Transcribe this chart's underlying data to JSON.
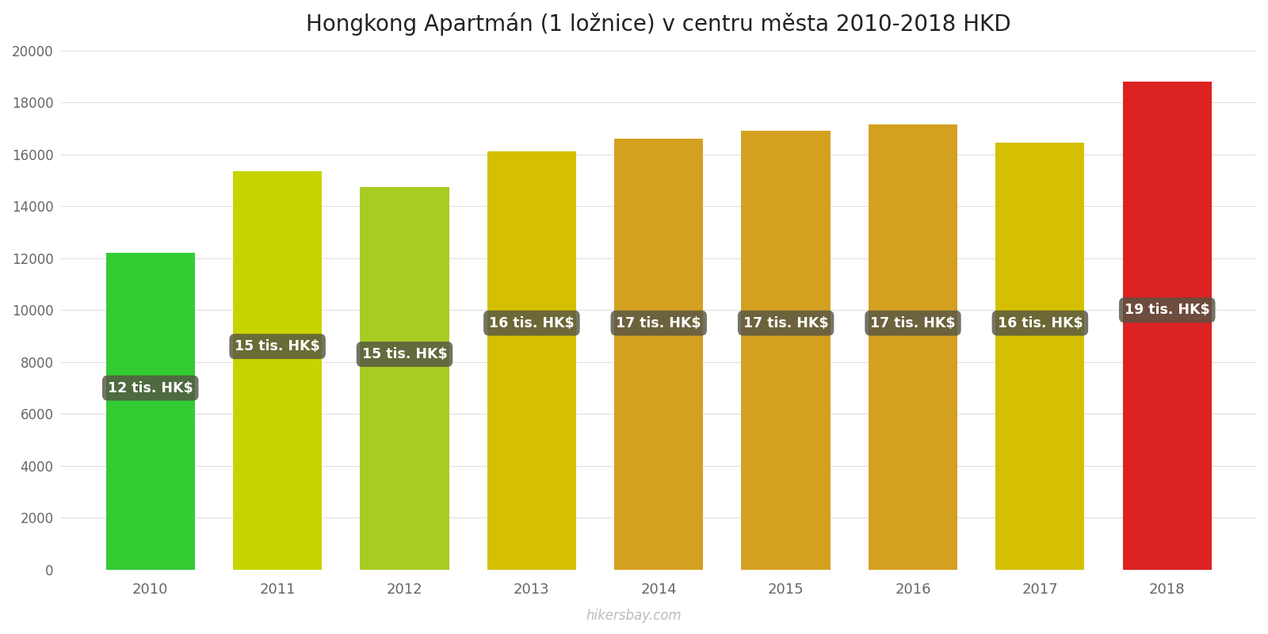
{
  "title": "Hongkong Apartmán (1 ložnice) v centru města 2010-2018 HKD",
  "years": [
    2010,
    2011,
    2012,
    2013,
    2014,
    2015,
    2016,
    2017,
    2018
  ],
  "values": [
    12200,
    15350,
    14750,
    16100,
    16600,
    16900,
    17150,
    16450,
    18800
  ],
  "bar_colors_left": [
    "#44dd44",
    "#ccdd33",
    "#aace33",
    "#ddcc33",
    "#ddaa22",
    "#ddaa22",
    "#ddaa22",
    "#ddcc33",
    "#ee3333"
  ],
  "bar_colors_right": [
    "#22bb22",
    "#aaaa00",
    "#88aa00",
    "#ccaa00",
    "#cc8800",
    "#cc8800",
    "#cc8800",
    "#ccaa00",
    "#cc1111"
  ],
  "labels": [
    "12 tis. HK$",
    "15 tis. HK$",
    "15 tis. HK$",
    "16 tis. HK$",
    "17 tis. HK$",
    "17 tis. HK$",
    "17 tis. HK$",
    "16 tis. HK$",
    "19 tis. HK$"
  ],
  "ylim": [
    0,
    20000
  ],
  "yticks": [
    0,
    2000,
    4000,
    6000,
    8000,
    10000,
    12000,
    14000,
    16000,
    18000,
    20000
  ],
  "watermark": "hikersbay.com",
  "background_color": "#ffffff",
  "title_fontsize": 20,
  "label_box_color": "#555544",
  "label_text_color": "#ffffff",
  "bar_width": 0.7
}
